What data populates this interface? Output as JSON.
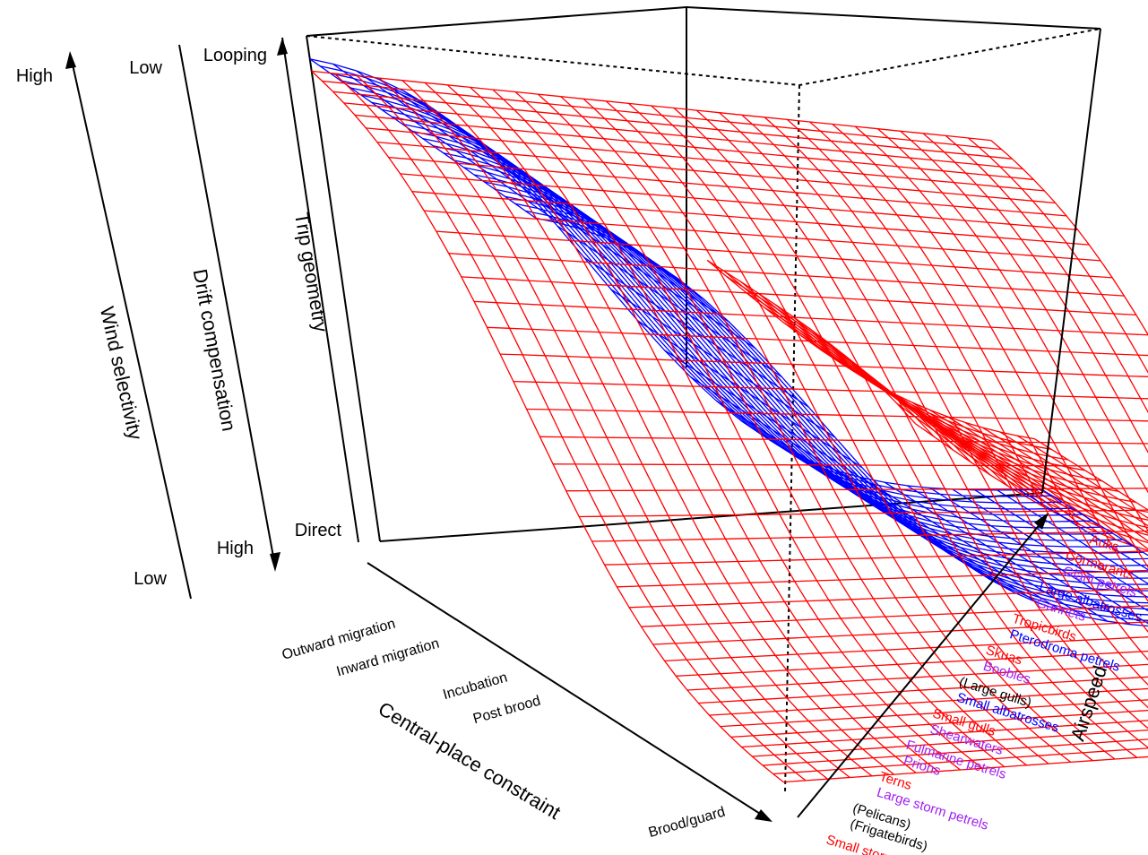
{
  "chart_data": {
    "type": "surface3d",
    "z_axis": {
      "title": "Trip geometry",
      "low_label": "Direct",
      "high_label": "Looping"
    },
    "extra_scales": [
      {
        "title": "Drift compensation",
        "top_label": "Low",
        "bottom_label": "High"
      },
      {
        "title": "Wind selectivity",
        "top_label": "High",
        "bottom_label": "Low"
      }
    ],
    "x_axis": {
      "title": "Central-place constraint",
      "ticks": [
        "Outward migration",
        "Inward migration",
        "Incubation",
        "Post brood",
        "Brood/guard"
      ]
    },
    "y_axis": {
      "title": "Airspeed",
      "ticks": [
        {
          "label": "Small storm petrels",
          "color": "#ff0000"
        },
        {
          "label": "(Frigatebirds)",
          "color": "#000000"
        },
        {
          "label": "(Pelicans)",
          "color": "#000000"
        },
        {
          "label": "Large storm petrels",
          "color": "#a020f0"
        },
        {
          "label": "Terns",
          "color": "#ff0000"
        },
        {
          "label": "Prions",
          "color": "#a020f0"
        },
        {
          "label": "Fulmarine petrels",
          "color": "#a020f0"
        },
        {
          "label": "Shearwaters",
          "color": "#a020f0"
        },
        {
          "label": "Small gulls",
          "color": "#ff0000"
        },
        {
          "label": "Small albatrosses",
          "color": "#0000ff"
        },
        {
          "label": "(Large gulls)",
          "color": "#000000"
        },
        {
          "label": "Boobies",
          "color": "#a020f0"
        },
        {
          "label": "Skuas",
          "color": "#ff0000"
        },
        {
          "label": "Pterodroma petrels",
          "color": "#0000ff"
        },
        {
          "label": "Tropicbirds",
          "color": "#ff0000"
        },
        {
          "label": "Gannets",
          "color": "#a020f0"
        },
        {
          "label": "Large albatrosses",
          "color": "#0000ff"
        },
        {
          "label": "Giant petrels",
          "color": "#a020f0"
        },
        {
          "label": "Cormorants",
          "color": "#ff0000"
        },
        {
          "label": "Auks",
          "color": "#ff0000"
        }
      ]
    },
    "surfaces": [
      {
        "color": "#ff0000",
        "shape": "sigmoid decreasing with central-place constraint; high at outward migration, near zero toward brood/guard",
        "z_at_x_start": 0.97,
        "z_at_x_end": 0.0,
        "midpoint_x": 0.45,
        "steepness": 7
      },
      {
        "color": "#0000ff",
        "shape": "sigmoid decreasing with airspeed; high at low airspeed, low at high airspeed",
        "z_at_y_start": 1.0,
        "z_at_y_end": 0.0,
        "midpoint_y": 0.38,
        "steepness": 8
      },
      {
        "color": "#ff0000",
        "shape": "rear red sheet, slowly decreasing with airspeed",
        "z_at_y_start": 0.96,
        "z_at_y_end": 0.05
      }
    ],
    "grid": false,
    "legend": "none"
  }
}
